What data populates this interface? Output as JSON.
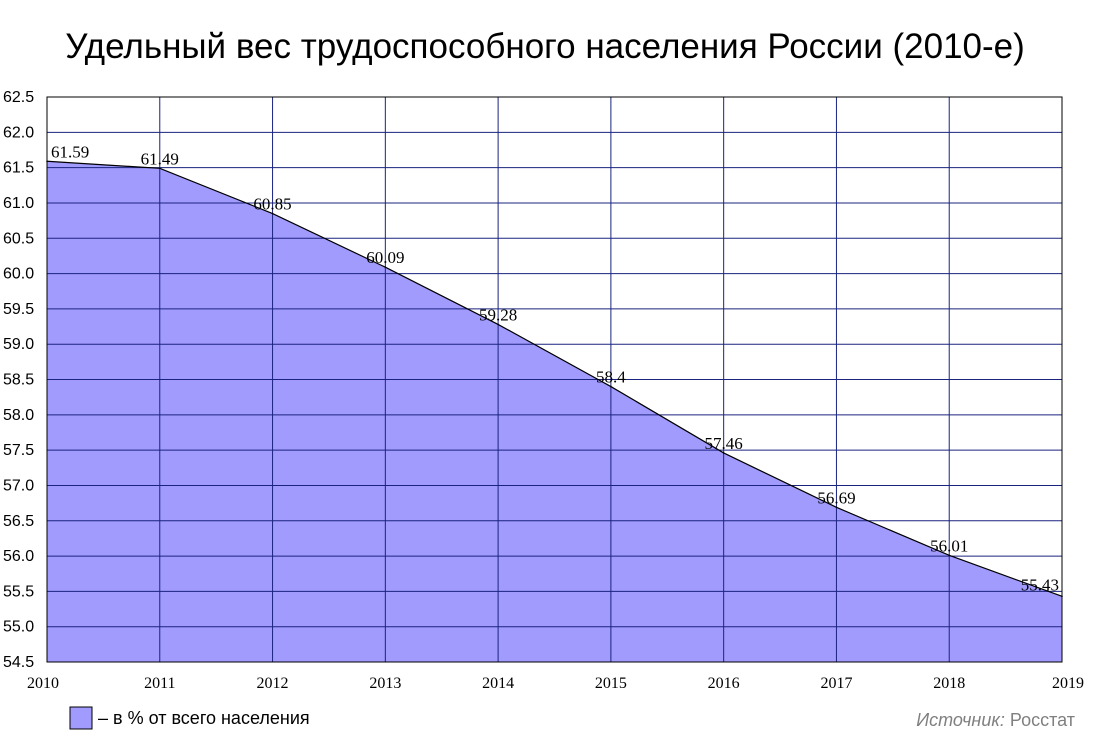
{
  "chart_data": {
    "type": "area",
    "title": "Удельный вес трудоспособного населения России (2010-е)",
    "x": [
      2010,
      2011,
      2012,
      2013,
      2014,
      2015,
      2016,
      2017,
      2018,
      2019
    ],
    "series": [
      {
        "name": "– в % от всего населения",
        "values": [
          61.59,
          61.49,
          60.85,
          60.09,
          59.28,
          58.4,
          57.46,
          56.69,
          56.01,
          55.43
        ],
        "color": "#a29bfe"
      }
    ],
    "data_labels": [
      "61.59",
      "61.49",
      "60.85",
      "60.09",
      "59.28",
      "58.4",
      "57.46",
      "56.69",
      "56.01",
      "55.43"
    ],
    "yticks": [
      "62.5",
      "62.0",
      "61.5",
      "61.0",
      "60.5",
      "60.0",
      "59.5",
      "59.0",
      "58.5",
      "58.0",
      "57.5",
      "57.0",
      "56.5",
      "56.0",
      "55.5",
      "55.0",
      "54.5"
    ],
    "xticks": [
      "2010",
      "2011",
      "2012",
      "2013",
      "2014",
      "2015",
      "2016",
      "2017",
      "2018",
      "2019"
    ],
    "ylim": [
      54.5,
      62.5
    ],
    "xlim": [
      2010,
      2019
    ],
    "grid": true,
    "grid_color": "#1a237e",
    "legend_position": "bottom-left"
  },
  "source": {
    "label": "Источник:",
    "value": "Росстат"
  }
}
